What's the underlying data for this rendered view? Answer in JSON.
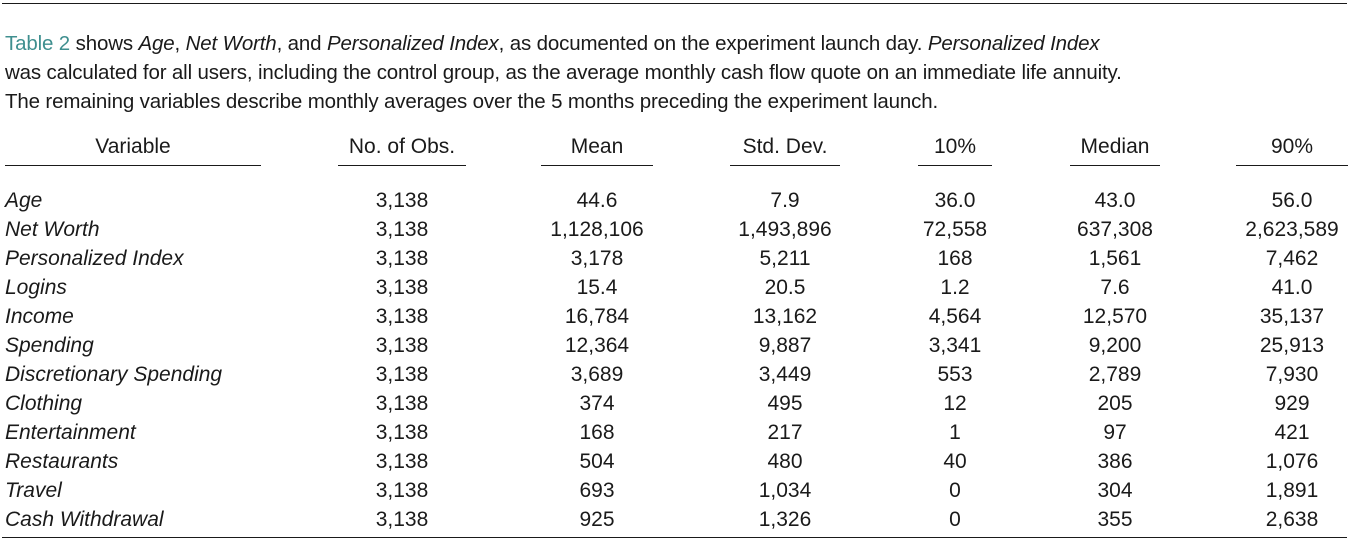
{
  "caption": {
    "line1_ref": "Table 2",
    "line1_a": " shows ",
    "line1_b": "Age",
    "line1_c": ", ",
    "line1_d": "Net Worth",
    "line1_e": ", and ",
    "line1_f": "Personalized Index",
    "line1_g": ", as documented on the experiment launch day. ",
    "line1_h": "Personalized Index",
    "line2": "was calculated for all users, including the control group, as the average monthly cash flow quote on an immediate life annuity.",
    "line3": "The remaining variables describe monthly averages over the 5 months preceding the experiment launch."
  },
  "table": {
    "headers": [
      "Variable",
      "No. of Obs.",
      "Mean",
      "Std. Dev.",
      "10%",
      "Median",
      "90%"
    ],
    "rows": [
      [
        "Age",
        "3,138",
        "44.6",
        "7.9",
        "36.0",
        "43.0",
        "56.0"
      ],
      [
        "Net Worth",
        "3,138",
        "1,128,106",
        "1,493,896",
        "72,558",
        "637,308",
        "2,623,589"
      ],
      [
        "Personalized Index",
        "3,138",
        "3,178",
        "5,211",
        "168",
        "1,561",
        "7,462"
      ],
      [
        "Logins",
        "3,138",
        "15.4",
        "20.5",
        "1.2",
        "7.6",
        "41.0"
      ],
      [
        "Income",
        "3,138",
        "16,784",
        "13,162",
        "4,564",
        "12,570",
        "35,137"
      ],
      [
        "Spending",
        "3,138",
        "12,364",
        "9,887",
        "3,341",
        "9,200",
        "25,913"
      ],
      [
        "Discretionary Spending",
        "3,138",
        "3,689",
        "3,449",
        "553",
        "2,789",
        "7,930"
      ],
      [
        "Clothing",
        "3,138",
        "374",
        "495",
        "12",
        "205",
        "929"
      ],
      [
        "Entertainment",
        "3,138",
        "168",
        "217",
        "1",
        "97",
        "421"
      ],
      [
        "Restaurants",
        "3,138",
        "504",
        "480",
        "40",
        "386",
        "1,076"
      ],
      [
        "Travel",
        "3,138",
        "693",
        "1,034",
        "0",
        "304",
        "1,891"
      ],
      [
        "Cash Withdrawal",
        "3,138",
        "925",
        "1,326",
        "0",
        "355",
        "2,638"
      ]
    ]
  }
}
